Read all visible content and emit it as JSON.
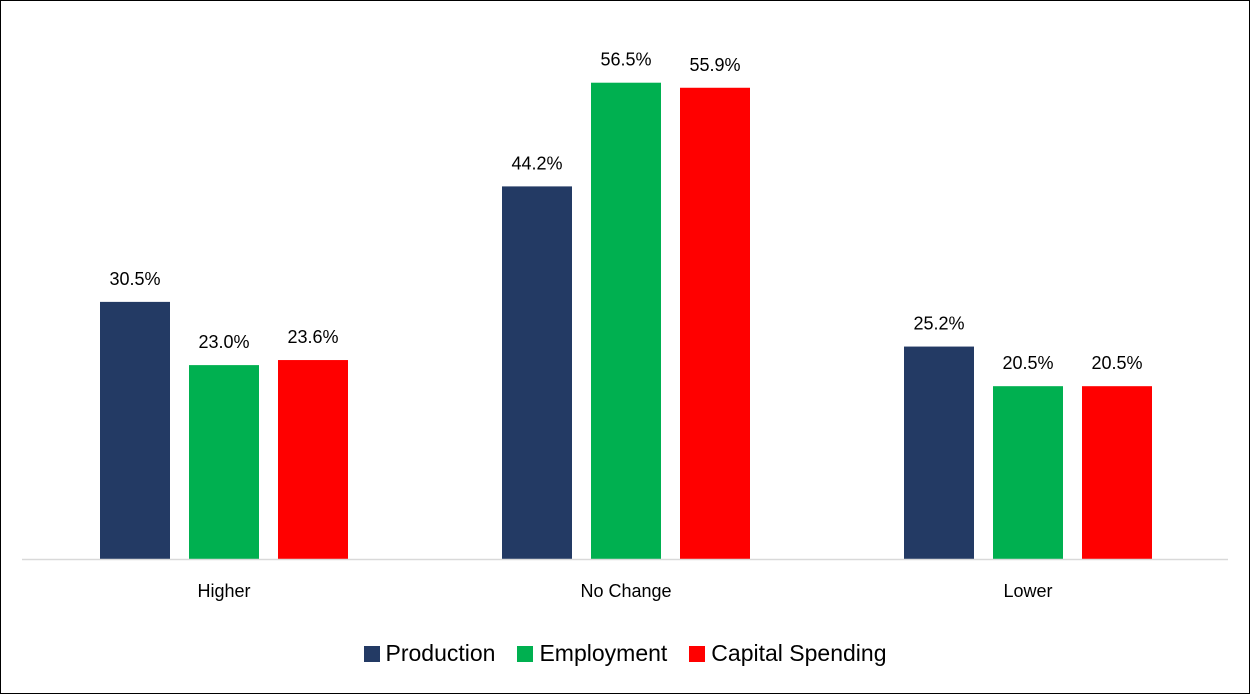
{
  "chart_data": {
    "type": "bar",
    "title": "",
    "xlabel": "",
    "ylabel": "",
    "categories": [
      "Higher",
      "No Change",
      "Lower"
    ],
    "series": [
      {
        "name": "Production",
        "color": "#233A64",
        "values": [
          30.5,
          44.2,
          25.2
        ],
        "labels": [
          "30.5%",
          "44.2%",
          "25.2%"
        ]
      },
      {
        "name": "Employment",
        "color": "#00B050",
        "values": [
          23.0,
          56.5,
          20.5
        ],
        "labels": [
          "23.0%",
          "56.5%",
          "20.5%"
        ]
      },
      {
        "name": "Capital Spending",
        "color": "#FF0000",
        "values": [
          23.6,
          55.9,
          20.5
        ],
        "labels": [
          "23.6%",
          "55.9%",
          "20.5%"
        ]
      }
    ],
    "ylim": [
      0,
      60
    ],
    "grid": false,
    "legend_position": "bottom"
  }
}
